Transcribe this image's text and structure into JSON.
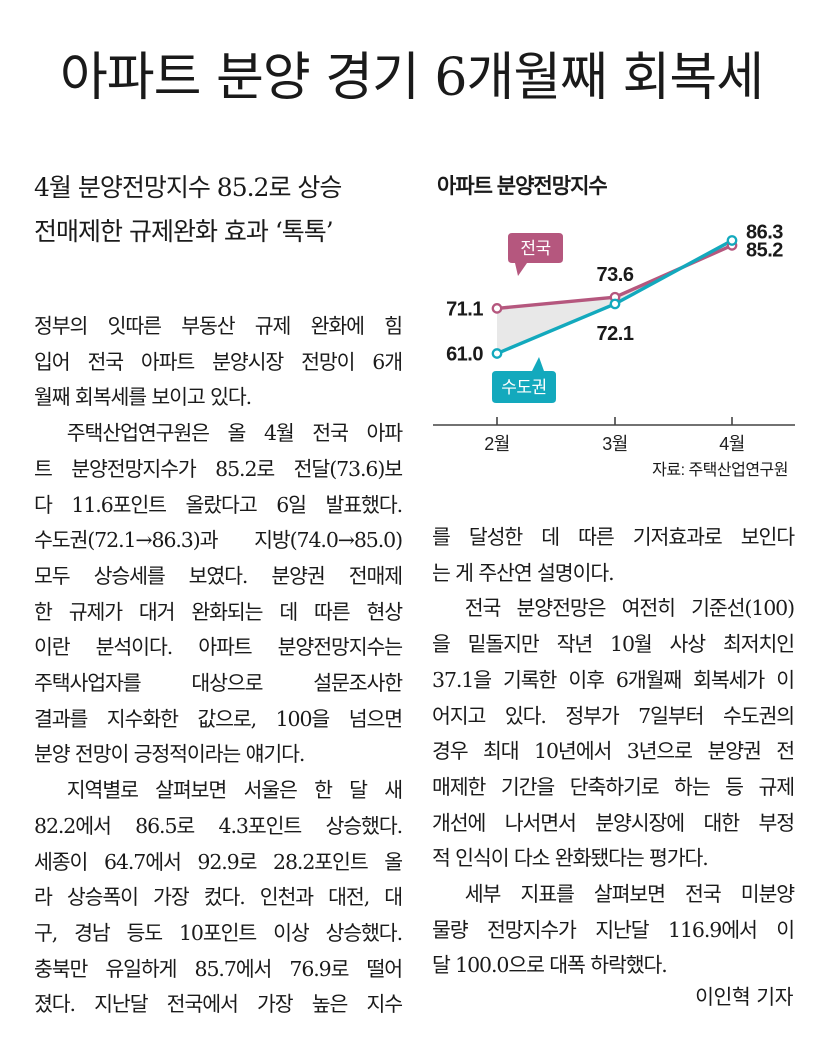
{
  "headline": "아파트 분양 경기 6개월째 회복세",
  "subhead": [
    "4월 분양전망지수 85.2로 상승",
    "전매제한 규제완화 효과 ‘톡톡’"
  ],
  "body_left": [
    "정부의 잇따른 부동산 규제 완화에 힘",
    "입어 전국 아파트 분양시장 전망이 6개",
    "월째 회복세를 보이고 있다.",
    "주택산업연구원은 올 4월 전국 아파",
    "트 분양전망지수가 85.2로 전달(73.6)보",
    "다 11.6포인트 올랐다고 6일 발표했다.",
    "수도권(72.1→86.3)과 지방(74.0→85.0)",
    "모두 상승세를 보였다. 분양권 전매제",
    "한 규제가 대거 완화되는 데 따른 현상",
    "이란 분석이다. 아파트 분양전망지수는",
    "주택사업자를 대상으로 설문조사한",
    "결과를 지수화한 값으로, 100을 넘으면",
    "분양 전망이 긍정적이라는 얘기다.",
    "지역별로 살펴보면 서울은 한 달 새",
    "82.2에서 86.5로 4.3포인트 상승했다.",
    "세종이 64.7에서 92.9로 28.2포인트 올",
    "라 상승폭이 가장 컸다. 인천과 대전, 대",
    "구, 경남 등도 10포인트 이상 상승했다.",
    "충북만 유일하게 85.7에서 76.9로 떨어",
    "졌다. 지난달 전국에서 가장 높은 지수"
  ],
  "body_right": [
    "를 달성한 데 따른 기저효과로 보인다",
    "는 게 주산연 설명이다.",
    "전국 분양전망은 여전히 기준선(100)",
    "을 밑돌지만 작년 10월 사상 최저치인",
    "37.1을 기록한 이후 6개월째 회복세가 이",
    "어지고 있다. 정부가 7일부터 수도권의",
    "경우 최대 10년에서 3년으로 분양권 전",
    "매제한 기간을 단축하기로 하는 등 규제",
    "개선에 나서면서 분양시장에 대한 부정",
    "적 인식이 다소 완화됐다는 평가다.",
    "세부 지표를 살펴보면 전국 미분양",
    "물량 전망지수가 지난달 116.9에서 이",
    "달 100.0으로 대폭 하락했다."
  ],
  "byline": "이인혁 기자",
  "chart_data": {
    "type": "line",
    "title": "아파트 분양전망지수",
    "categories": [
      "2월",
      "3월",
      "4월"
    ],
    "series": [
      {
        "name": "전국",
        "values": [
          71.1,
          73.6,
          85.2
        ],
        "labels": [
          "71.1",
          "73.6",
          "85.2"
        ],
        "color": "#b5577e"
      },
      {
        "name": "수도권",
        "values": [
          61.0,
          72.1,
          86.3
        ],
        "labels": [
          "61.0",
          "72.1",
          "86.3"
        ],
        "color": "#13a9bd"
      }
    ],
    "ylim": [
      45,
      92
    ],
    "fill_between_color": "#e8e8e8",
    "axis_color": "#444444",
    "source": "자료: 주택산업연구원"
  }
}
